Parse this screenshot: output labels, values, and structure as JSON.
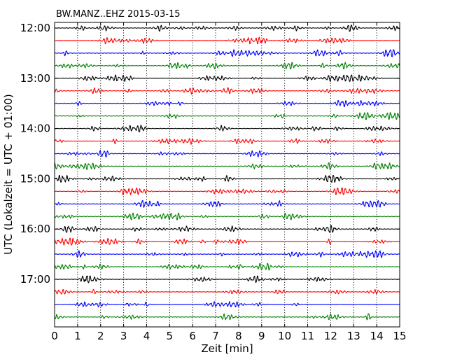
{
  "chart_data": {
    "type": "line",
    "title": "BW.MANZ..EHZ 2015-03-15",
    "xlabel": "Zeit  [min]",
    "ylabel": "UTC (Lokalzeit = UTC + 01:00)",
    "xlim": [
      0,
      15
    ],
    "x_ticks": [
      "0",
      "1",
      "2",
      "3",
      "4",
      "5",
      "6",
      "7",
      "8",
      "9",
      "10",
      "11",
      "12",
      "13",
      "14",
      "15"
    ],
    "y_ticks": [
      "12:00",
      "13:00",
      "14:00",
      "15:00",
      "16:00",
      "17:00"
    ],
    "trace_interval_minutes": 15,
    "grid": "vertical dotted lines at each minute",
    "color_cycle": [
      "#000000",
      "#ff0000",
      "#0000ff",
      "#008000"
    ],
    "series": [
      {
        "start": "12:00"
      },
      {
        "start": "12:15"
      },
      {
        "start": "12:30"
      },
      {
        "start": "12:45"
      },
      {
        "start": "13:00"
      },
      {
        "start": "13:15"
      },
      {
        "start": "13:30"
      },
      {
        "start": "13:45"
      },
      {
        "start": "14:00"
      },
      {
        "start": "14:15"
      },
      {
        "start": "14:30"
      },
      {
        "start": "14:45"
      },
      {
        "start": "15:00"
      },
      {
        "start": "15:15"
      },
      {
        "start": "15:30"
      },
      {
        "start": "15:45"
      },
      {
        "start": "16:00"
      },
      {
        "start": "16:15"
      },
      {
        "start": "16:30"
      },
      {
        "start": "16:45"
      },
      {
        "start": "17:00"
      },
      {
        "start": "17:15"
      },
      {
        "start": "17:30"
      },
      {
        "start": "17:45"
      }
    ]
  }
}
